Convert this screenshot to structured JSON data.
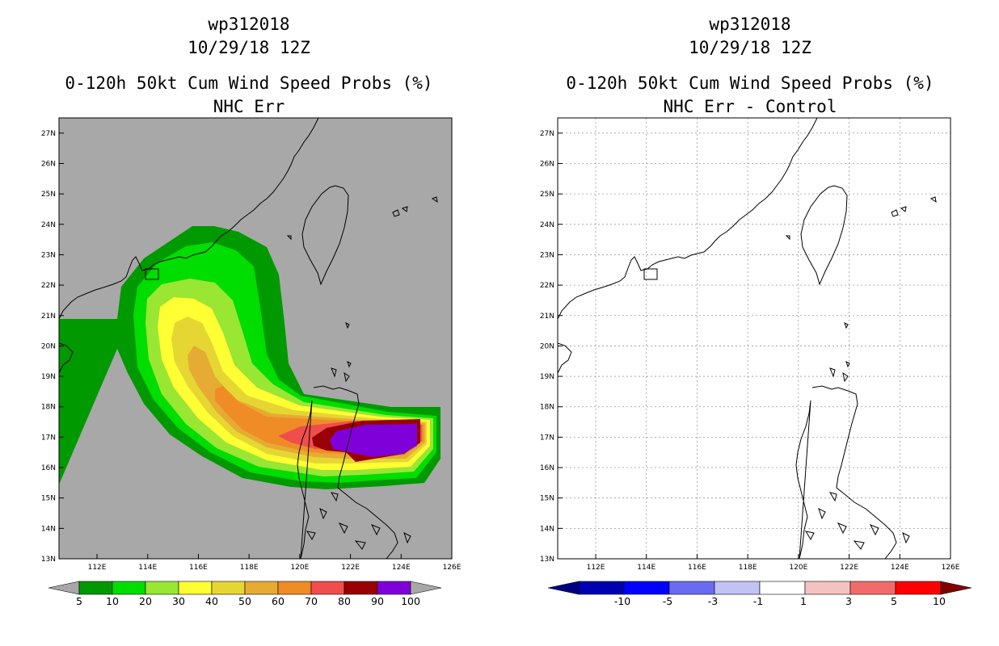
{
  "left_panel": {
    "title_lines": [
      "wp312018",
      "10/29/18 12Z",
      "0-120h 50kt Cum Wind Speed Probs (%)",
      "NHC Err"
    ],
    "colorbar": {
      "labels": [
        "5",
        "10",
        "20",
        "30",
        "40",
        "50",
        "60",
        "70",
        "80",
        "90",
        "100"
      ],
      "colors": [
        "#009900",
        "#00dd00",
        "#99e633",
        "#ffff33",
        "#e6d633",
        "#e6ab33",
        "#f08c26",
        "#f04d4d",
        "#990000",
        "#8000d9"
      ],
      "end_color": "#a8a8a8"
    }
  },
  "right_panel": {
    "title_lines": [
      "wp312018",
      "10/29/18 12Z",
      "0-120h 50kt Cum Wind Speed Probs (%)",
      "NHC Err - Control"
    ],
    "colorbar": {
      "labels": [
        "-10",
        "-5",
        "-3",
        "-1",
        "1",
        "3",
        "5",
        "10"
      ],
      "colors": [
        "#0000b3",
        "#0000ff",
        "#6b6bf2",
        "#c2c2f5",
        "#ffffff",
        "#f5c2c2",
        "#f26b6b",
        "#ff0000"
      ],
      "left_end_color": "#000080",
      "right_end_color": "#800000"
    }
  },
  "chart_data": [
    {
      "type": "contour-map",
      "title": "0-120h 50kt Cum Wind Speed Probs (%)",
      "subtitle": "NHC Err",
      "storm": "wp312018",
      "date": "10/29/18 12Z",
      "x_ticks": [
        "112E",
        "114E",
        "116E",
        "118E",
        "120E",
        "122E",
        "124E",
        "126E"
      ],
      "y_ticks": [
        "13N",
        "14N",
        "15N",
        "16N",
        "17N",
        "18N",
        "19N",
        "20N",
        "21N",
        "22N",
        "23N",
        "24N",
        "25N",
        "26N",
        "27N"
      ],
      "xlim": [
        110.5,
        126
      ],
      "ylim": [
        13,
        27.5
      ],
      "background_color": "#a8a8a8",
      "levels": [
        5,
        10,
        20,
        30,
        40,
        50,
        60,
        70,
        80,
        90,
        100
      ],
      "grid": false
    },
    {
      "type": "contour-map",
      "title": "0-120h 50kt Cum Wind Speed Probs (%)",
      "subtitle": "NHC Err - Control",
      "storm": "wp312018",
      "date": "10/29/18 12Z",
      "x_ticks": [
        "112E",
        "114E",
        "116E",
        "118E",
        "120E",
        "122E",
        "124E",
        "126E"
      ],
      "y_ticks": [
        "13N",
        "14N",
        "15N",
        "16N",
        "17N",
        "18N",
        "19N",
        "20N",
        "21N",
        "22N",
        "23N",
        "24N",
        "25N",
        "26N",
        "27N"
      ],
      "xlim": [
        110.5,
        126
      ],
      "ylim": [
        13,
        27.5
      ],
      "background_color": "#ffffff",
      "levels": [
        -10,
        -5,
        -3,
        -1,
        1,
        3,
        5,
        10
      ],
      "grid": true
    }
  ]
}
